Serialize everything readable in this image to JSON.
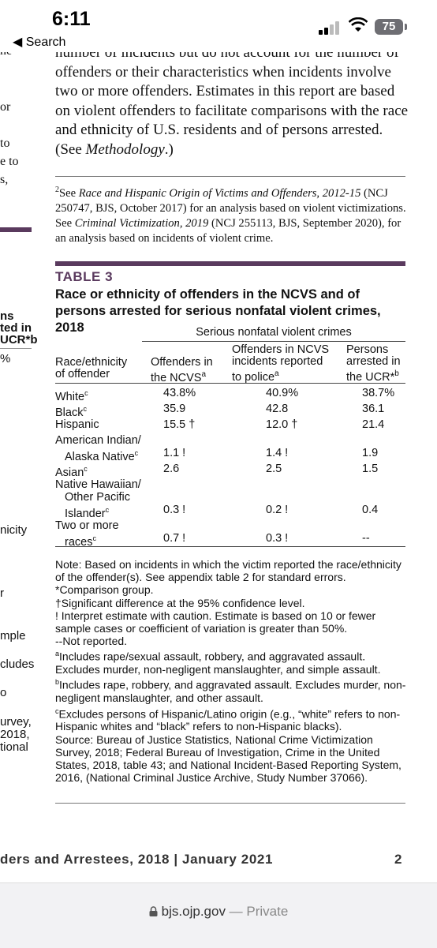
{
  "status": {
    "time": "6:11",
    "back_label": "◀ Search",
    "battery": "75"
  },
  "left_fragments": [
    "ne",
    "or",
    "to",
    "e to",
    "s,",
    "ns",
    "ted in",
    "UCR*b",
    "%",
    "nicity",
    "r",
    "mple",
    "cludes",
    "o",
    "urvey,",
    "2018,",
    "tional"
  ],
  "body_paragraph": "number of incidents but do not account for the number of offenders or their characteristics when incidents involve two or more offenders. Estimates in this report are based on violent offenders to facilitate comparisons with the race and ethnicity of U.S. residents and of persons arrested. (See Methodology.)",
  "body_italic": "Methodology",
  "footnote": {
    "mark": "2",
    "see": "See ",
    "title1": "Race and Hispanic Origin of Victims and Offenders, 2012-15",
    "mid": " (NCJ 250747, BJS, October 2017) for an analysis based on violent victimizations. See ",
    "title2": "Criminal Victimization, 2019",
    "end": " (NCJ 255113, BJS, September 2020), for an analysis based on incidents of violent crime."
  },
  "table": {
    "label": "TABLE 3",
    "title": "Race or ethnicity of offenders in the NCVS and of persons arrested for serious nonfatal violent crimes, 2018",
    "group_header": "Serious nonfatal violent crimes",
    "col0": [
      "Race/ethnicity",
      "of offender"
    ],
    "col1": [
      "Offenders in",
      "the NCVS",
      "a"
    ],
    "col2": [
      "Offenders in NCVS",
      "incidents reported",
      "to police",
      "a"
    ],
    "col3": [
      "Persons",
      "arrested in",
      "the UCR*",
      "b"
    ],
    "rows": [
      {
        "label": [
          "White"
        ],
        "sup": "c",
        "v1": "43.8%",
        "v2": "40.9%",
        "v3": "38.7%"
      },
      {
        "label": [
          "Black"
        ],
        "sup": "c",
        "v1": "35.9",
        "v2": "42.8",
        "v3": "36.1"
      },
      {
        "label": [
          "Hispanic"
        ],
        "sup": "",
        "v1": "15.5 †",
        "v2": "12.0 †",
        "v3": "21.4"
      },
      {
        "label": [
          "American Indian/",
          "Alaska Native"
        ],
        "sup": "c",
        "v1": "1.1 !",
        "v2": "1.4 !",
        "v3": "1.9"
      },
      {
        "label": [
          "Asian"
        ],
        "sup": "c",
        "v1": "2.6",
        "v2": "2.5",
        "v3": "1.5"
      },
      {
        "label": [
          "Native Hawaiian/",
          "Other Pacific",
          "Islander"
        ],
        "sup": "c",
        "v1": "0.3 !",
        "v2": "0.2 !",
        "v3": "0.4"
      },
      {
        "label": [
          "Two or more",
          "races"
        ],
        "sup": "c",
        "v1": "0.7 !",
        "v2": "0.3 !",
        "v3": "--"
      }
    ]
  },
  "notes": [
    {
      "sup": "",
      "text": "Note: Based on incidents in which the victim reported the race/ethnicity of the offender(s). See appendix table 2 for standard errors."
    },
    {
      "sup": "",
      "text": "*Comparison group."
    },
    {
      "sup": "",
      "text": "†Significant difference at the 95% confidence level."
    },
    {
      "sup": "",
      "text": "! Interpret estimate with caution. Estimate is based on 10 or fewer sample cases or coefficient of variation is greater than 50%."
    },
    {
      "sup": "",
      "text": "--Not reported."
    },
    {
      "sup": "a",
      "text": "Includes rape/sexual assault, robbery, and aggravated assault. Excludes murder, non-negligent manslaughter, and simple assault."
    },
    {
      "sup": "b",
      "text": "Includes rape, robbery, and aggravated assault. Excludes murder, non-negligent manslaughter, and other assault."
    },
    {
      "sup": "c",
      "text": "Excludes persons of Hispanic/Latino origin (e.g., “white” refers to non-Hispanic whites and “black” refers to non-Hispanic blacks)."
    },
    {
      "sup": "",
      "text": "Source: Bureau of Justice Statistics, National Crime Victimization Survey, 2018; Federal Bureau of Investigation, Crime in the United States, 2018, table 43; and National Incident-Based Reporting System, 2016, (National Criminal Justice Archive, Study Number 37066)."
    }
  ],
  "page_footer": {
    "text": "ders and Arrestees, 2018 | January 2021",
    "page": "2"
  },
  "url_bar": {
    "domain": "bjs.ojp.gov",
    "suffix": " — Private",
    "lock_icon": "lock-icon"
  },
  "colors": {
    "accent_purple": "#5a3a5e"
  }
}
